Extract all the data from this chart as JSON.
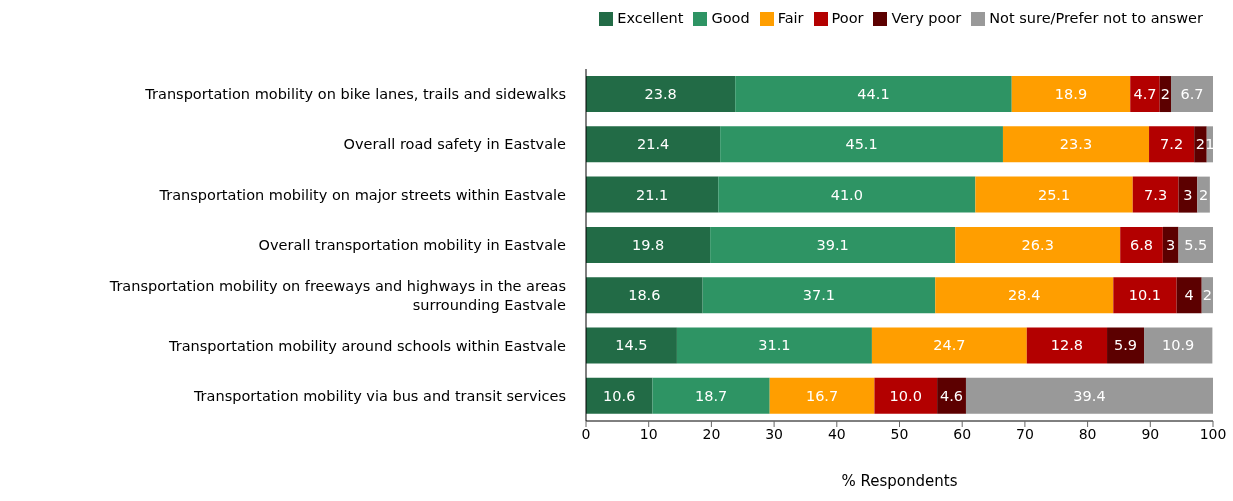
{
  "chart_data": {
    "type": "bar",
    "orientation": "horizontal",
    "stacked": true,
    "xlabel": "% Respondents",
    "legend": "top right",
    "categories": [
      "Transportation mobility on bike lanes, trails and sidewalks",
      "Overall road safety in Eastvale",
      "Transportation mobility on major streets within Eastvale",
      "Overall transportation mobility in Eastvale",
      "Transportation mobility on freeways and highways in the areas surrounding Eastvale",
      "Transportation mobility around schools within Eastvale",
      "Transportation mobility via bus and transit services"
    ],
    "xlim": [
      0,
      100
    ],
    "xticks": [
      0,
      10,
      20,
      30,
      40,
      50,
      60,
      70,
      80,
      90,
      100
    ],
    "series": [
      {
        "name": "Excellent",
        "color": "#226b46",
        "values": [
          23.8,
          21.4,
          21.1,
          19.8,
          18.6,
          14.5,
          10.6
        ],
        "value_labels": [
          "23.8",
          "21.4",
          "21.1",
          "19.8",
          "18.6",
          "14.5",
          "10.6"
        ]
      },
      {
        "name": "Good",
        "color": "#2e9464",
        "values": [
          44.1,
          45.1,
          41.0,
          39.1,
          37.1,
          31.1,
          18.7
        ],
        "value_labels": [
          "44.1",
          "45.1",
          "41.0",
          "39.1",
          "37.1",
          "31.1",
          "18.7"
        ]
      },
      {
        "name": "Fair",
        "color": "#ff9e00",
        "values": [
          18.9,
          23.3,
          25.1,
          26.3,
          28.4,
          24.7,
          16.7
        ],
        "value_labels": [
          "18.9",
          "23.3",
          "25.1",
          "26.3",
          "28.4",
          "24.7",
          "16.7"
        ]
      },
      {
        "name": "Poor",
        "color": "#b30000",
        "values": [
          4.7,
          7.2,
          7.3,
          6.8,
          10.1,
          12.8,
          10.0
        ],
        "value_labels": [
          "4.7",
          "7.2",
          "7.3",
          "6.8",
          "10.1",
          "12.8",
          "10.0"
        ]
      },
      {
        "name": "Very poor",
        "color": "#5c0000",
        "values": [
          1.8,
          2,
          3,
          2.5,
          4,
          5.9,
          4.6
        ],
        "value_labels": [
          "2",
          "2",
          "3",
          "3",
          "4",
          "5.9",
          "4.6"
        ]
      },
      {
        "name": "Not sure/Prefer not to answer",
        "color": "#999999",
        "values": [
          6.7,
          1,
          2,
          5.5,
          1.8,
          10.9,
          39.4
        ],
        "value_labels": [
          "6.7",
          "1",
          "2",
          "5.5",
          "2",
          "10.9",
          "39.4"
        ]
      }
    ]
  }
}
